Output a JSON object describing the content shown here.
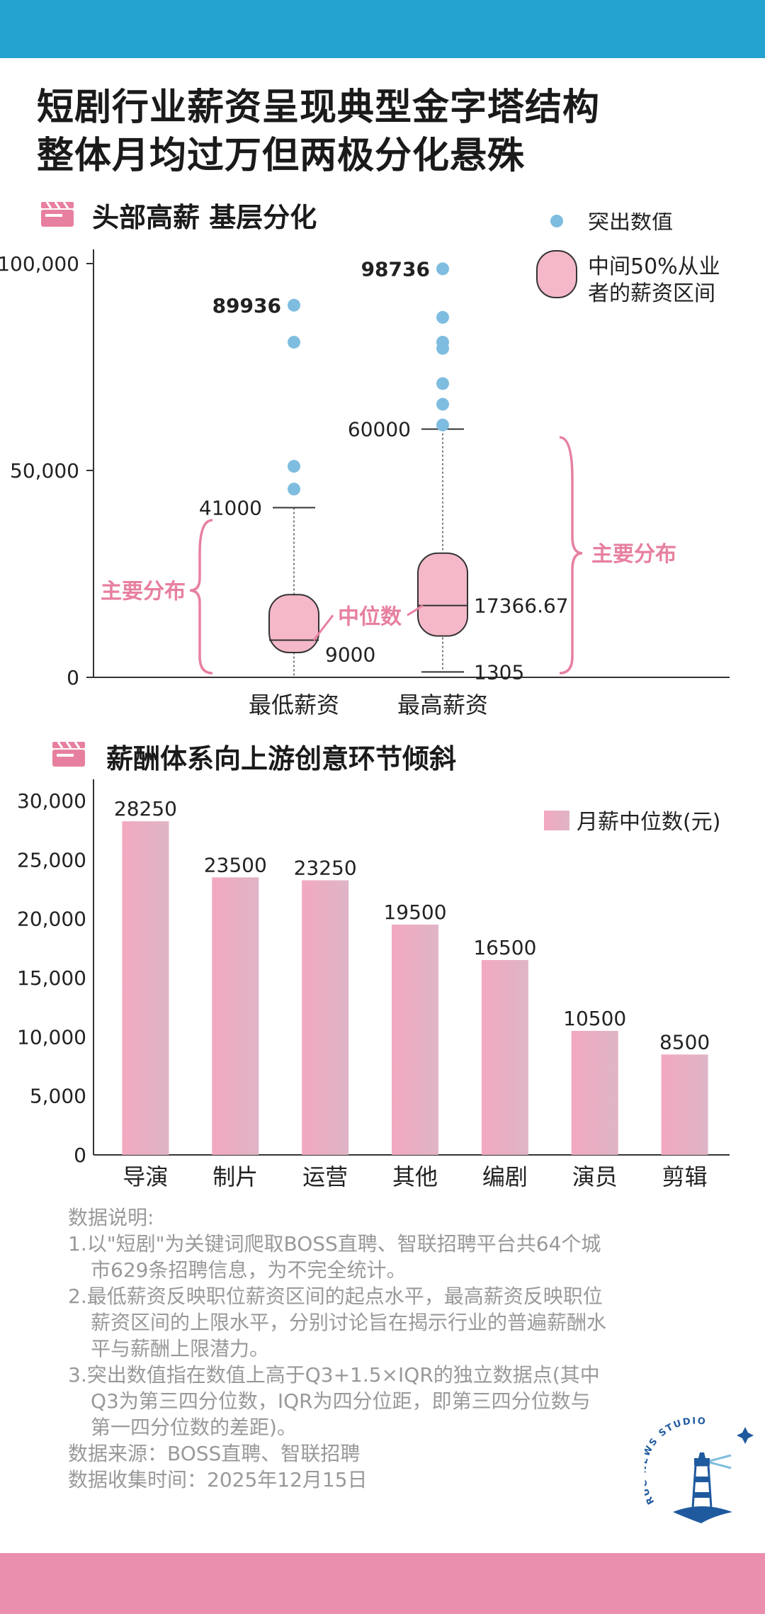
{
  "title": {
    "line1": "短剧行业薪资呈现典型金字塔结构",
    "line2": "整体月均过万但两极分化悬殊"
  },
  "section1": {
    "title": "头部高薪  基层分化",
    "icon": "clapperboard-icon"
  },
  "section2": {
    "title": "薪酬体系向上游创意环节倾斜",
    "icon": "clapperboard-icon"
  },
  "colors": {
    "header_bar": "#23a3cf",
    "footer_bar": "#ea8fae",
    "box_fill": "#f4b8c9",
    "outlier": "#7fbde0",
    "bar_fill": "#efb0c2",
    "annotation": "#e7809f"
  },
  "chart_data": [
    {
      "type": "box",
      "categories": [
        "最低薪资",
        "最高薪资"
      ],
      "ylim": [
        0,
        100000
      ],
      "yticks": [
        0,
        50000,
        100000
      ],
      "ytick_labels": [
        "0",
        "50,000",
        "100,000"
      ],
      "grid": false,
      "legend_position": "top-right",
      "legend": {
        "outliers": "突出数值",
        "box_line1": "中间50%从业",
        "box_line2": "者的薪资区间"
      },
      "series": [
        {
          "category": "最低薪资",
          "whisker_low": 0,
          "q1": 6000,
          "median": 9000,
          "q3": 20000,
          "whisker_high": 41000,
          "outliers": [
            45500,
            51000,
            81000,
            89936
          ],
          "labels": {
            "max": "41000",
            "median": "9000",
            "top_outlier": "89936"
          }
        },
        {
          "category": "最高薪资",
          "whisker_low": 1305,
          "q1": 10000,
          "median": 17366.67,
          "q3": 30000,
          "whisker_high": 60000,
          "outliers": [
            61000,
            66000,
            71000,
            79500,
            81000,
            87000,
            98736
          ],
          "labels": {
            "max": "60000",
            "median": "17366.67",
            "min": "1305",
            "top_outlier": "98736"
          }
        }
      ],
      "annotations": {
        "median": "中位数",
        "main_left": "主要分布",
        "main_right": "主要分布"
      }
    },
    {
      "type": "bar",
      "categories": [
        "导演",
        "制片",
        "运营",
        "其他",
        "编剧",
        "演员",
        "剪辑"
      ],
      "series": [
        {
          "name": "月薪中位数(元)",
          "values": [
            28250,
            23500,
            23250,
            19500,
            16500,
            10500,
            8500
          ]
        }
      ],
      "value_labels": [
        "28250",
        "23500",
        "23250",
        "19500",
        "16500",
        "10500",
        "8500"
      ],
      "ylim": [
        0,
        31500
      ],
      "yticks": [
        0,
        5000,
        10000,
        15000,
        20000,
        25000,
        30000
      ],
      "ytick_labels": [
        "0",
        "5,000",
        "10,000",
        "15,000",
        "20,000",
        "25,000",
        "30,000"
      ],
      "grid": false,
      "legend_position": "top-right"
    }
  ],
  "notes": {
    "heading": "数据说明:",
    "items": [
      "1.以\"短剧\"为关键词爬取BOSS直聘、智联招聘平台共64个城市629条招聘信息，为不完全统计。",
      "2.最低薪资反映职位薪资区间的起点水平，最高薪资反映职位薪资区间的上限水平，分别讨论旨在揭示行业的普遍薪酬水平与薪酬上限潜力。",
      "3.突出数值指在数值上高于Q3+1.5×IQR的独立数据点(其中Q3为第三四分位数，IQR为四分位距，即第三四分位数与第一四分位数的差距)。"
    ],
    "source": "数据来源：BOSS直聘、智联招聘",
    "date": "数据收集时间：2025年12月15日"
  },
  "logo": {
    "text": "RUC NEWS STUDIO",
    "icon": "lighthouse-icon"
  }
}
